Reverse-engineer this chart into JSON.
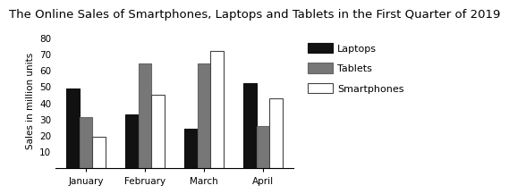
{
  "title": "The Online Sales of Smartphones, Laptops and Tablets in the First Quarter of 2019",
  "categories": [
    "January",
    "February",
    "March",
    "April"
  ],
  "series": {
    "Laptops": [
      49,
      33,
      24,
      52
    ],
    "Tablets": [
      31,
      64,
      64,
      26
    ],
    "Smartphones": [
      19,
      45,
      72,
      43
    ]
  },
  "bar_colors": {
    "Laptops": "#111111",
    "Tablets": "#777777",
    "Smartphones": "#ffffff"
  },
  "bar_edgecolors": {
    "Laptops": "#111111",
    "Tablets": "#666666",
    "Smartphones": "#444444"
  },
  "ylabel": "Sales in million units",
  "ylim": [
    0,
    83
  ],
  "yticks": [
    10,
    20,
    30,
    40,
    50,
    60,
    70,
    80
  ],
  "title_fontsize": 9.5,
  "axis_fontsize": 7.5,
  "tick_fontsize": 7.5,
  "legend_fontsize": 8,
  "bar_width": 0.22,
  "background_color": "#ffffff"
}
